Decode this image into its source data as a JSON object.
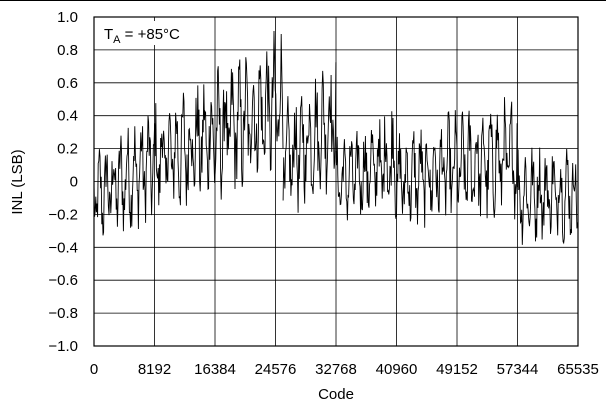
{
  "chart_data": {
    "type": "line",
    "annotation": {
      "main": "T",
      "sub": "A",
      "rest": " = +85°C"
    },
    "xlabel": "Code",
    "ylabel": "INL (LSB)",
    "xlim": [
      0,
      65535
    ],
    "ylim": [
      -1.0,
      1.0
    ],
    "grid": true,
    "x_ticks": [
      0,
      8192,
      16384,
      24576,
      32768,
      40960,
      49152,
      57344,
      65535
    ],
    "x_tick_labels": [
      "0",
      "8192",
      "16384",
      "24576",
      "32768",
      "40960",
      "49152",
      "57344",
      "65535"
    ],
    "y_ticks": [
      1.0,
      0.8,
      0.6,
      0.4,
      0.2,
      0,
      -0.2,
      -0.4,
      -0.6,
      -0.8,
      -1.0
    ],
    "y_tick_labels": [
      "1.0",
      "0.8",
      "0.6",
      "0.4",
      "0.2",
      "0",
      "−0.2",
      "−0.4",
      "−0.6",
      "−0.8",
      "−1.0"
    ],
    "series": [
      {
        "color": "#000000",
        "segments": [
          {
            "x": [
              0,
              8192,
              16384,
              24576,
              25600
            ],
            "y_center": [
              -0.1,
              0.12,
              0.28,
              0.45,
              0.5
            ],
            "y_spread": [
              0.3,
              0.36,
              0.4,
              0.44,
              0.44
            ]
          },
          {
            "x": [
              25600,
              32768
            ],
            "y_center": [
              0.1,
              0.4
            ],
            "y_spread": [
              0.36,
              0.4
            ]
          },
          {
            "x": [
              32768,
              37000,
              40960
            ],
            "y_center": [
              0.0,
              0.06,
              0.15
            ],
            "y_spread": [
              0.26,
              0.3,
              0.4
            ]
          },
          {
            "x": [
              40960,
              49152,
              57344
            ],
            "y_center": [
              0.0,
              0.08,
              0.15
            ],
            "y_spread": [
              0.3,
              0.34,
              0.36
            ]
          },
          {
            "x": [
              57344,
              65535
            ],
            "y_center": [
              -0.08,
              -0.06
            ],
            "y_spread": [
              0.3,
              0.3
            ]
          }
        ]
      }
    ]
  }
}
